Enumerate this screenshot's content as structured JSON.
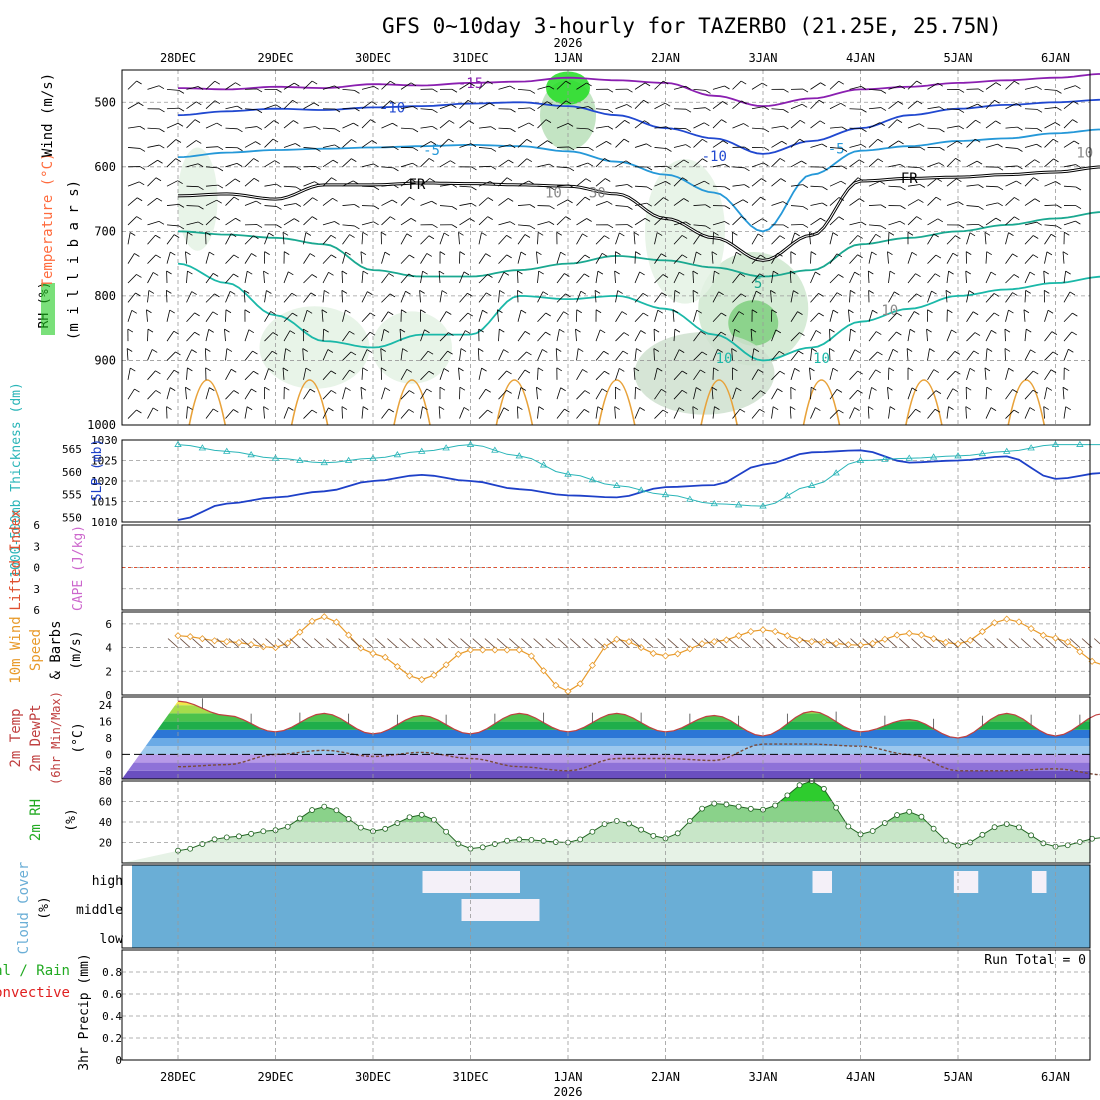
{
  "title": "GFS 0~10day 3-hourly for TAZERBO (21.25E, 25.75N)",
  "year_label": "2026",
  "run_total_label": "Run Total = 0",
  "date_labels": [
    "28DEC",
    "29DEC",
    "30DEC",
    "31DEC",
    "1JAN",
    "2JAN",
    "3JAN",
    "4JAN",
    "5JAN",
    "6JAN"
  ],
  "colors": {
    "rh": "#22cc22",
    "temperature": "#ff6b3d",
    "wind": "#1e40c8",
    "slp": "#1e40c8",
    "thickness": "#2ab5b8",
    "lifted_index": "#e05030",
    "cape": "#cc66cc",
    "wind10": "#e89a2a",
    "temp2m": "#c04040",
    "rh2m": "#22aa22",
    "cloud": "#6aaed6",
    "precip": "#22aa22",
    "convective": "#e02020"
  },
  "chart_data": [
    {
      "type": "contour",
      "panel": "upper-air cross-section",
      "ylabel_parts": [
        "RH (%)",
        "Temperature (°C)",
        "Wind (m/s)"
      ],
      "yunit_label": "(m i l l i b a r s)",
      "ylim": [
        1000,
        450
      ],
      "ticks": [
        500,
        600,
        700,
        800,
        900,
        1000
      ],
      "contour_labels": [
        "-15",
        "-10",
        "-5",
        "FR",
        "FR",
        "-10",
        "-5",
        "5",
        "10",
        "10",
        "10",
        "10",
        "30",
        "10"
      ],
      "series": [
        {
          "name": "-15",
          "color": "#8a1fb0",
          "x": [
            0,
            0.5,
            1,
            1.5,
            2,
            2.5,
            3,
            3.5,
            4,
            4.5,
            5,
            5.5,
            6,
            6.5,
            7,
            7.5,
            8,
            8.5,
            9,
            9.5,
            9.8
          ],
          "values": [
            478,
            480,
            476,
            478,
            472,
            474,
            470,
            468,
            462,
            466,
            470,
            490,
            506,
            494,
            480,
            476,
            470,
            466,
            462,
            456,
            452
          ]
        },
        {
          "name": "-10",
          "color": "#2048d0",
          "x": [
            0,
            0.5,
            1,
            1.5,
            2,
            2.5,
            3,
            3.5,
            4,
            4.5,
            5,
            5.5,
            6,
            6.5,
            7,
            7.5,
            8,
            8.5,
            9,
            9.5,
            9.8
          ],
          "values": [
            520,
            514,
            510,
            512,
            508,
            506,
            502,
            500,
            506,
            520,
            540,
            556,
            580,
            560,
            540,
            520,
            510,
            504,
            500,
            496,
            494
          ]
        },
        {
          "name": "-5",
          "color": "#2598d8",
          "x": [
            0,
            0.5,
            1,
            1.5,
            2,
            2.5,
            3,
            3.5,
            4,
            4.5,
            5,
            5.5,
            6,
            6.5,
            7,
            7.5,
            8,
            8.5,
            9,
            9.5,
            9.8
          ],
          "values": [
            585,
            578,
            574,
            572,
            570,
            568,
            566,
            568,
            576,
            592,
            612,
            640,
            700,
            612,
            575,
            568,
            560,
            556,
            548,
            542,
            540
          ]
        },
        {
          "name": "FR",
          "color": "#000000",
          "x": [
            0,
            0.5,
            1,
            1.5,
            2,
            2.5,
            3,
            3.5,
            4,
            4.5,
            5,
            5.5,
            6,
            6.5,
            7,
            7.5,
            8,
            8.5,
            9,
            9.5,
            9.8
          ],
          "values": [
            645,
            642,
            650,
            628,
            628,
            625,
            626,
            628,
            630,
            642,
            680,
            710,
            745,
            706,
            622,
            618,
            616,
            612,
            608,
            600,
            592
          ]
        },
        {
          "name": "5",
          "color": "#1aa890",
          "x": [
            0,
            0.5,
            1,
            1.5,
            2,
            2.5,
            3,
            3.5,
            4,
            4.5,
            5,
            5.5,
            6,
            6.5,
            7,
            7.5,
            8,
            8.5,
            9,
            9.5,
            9.8
          ],
          "values": [
            700,
            705,
            710,
            720,
            760,
            770,
            770,
            760,
            750,
            738,
            745,
            756,
            770,
            760,
            720,
            710,
            700,
            690,
            680,
            670,
            660
          ]
        },
        {
          "name": "10",
          "color": "#1ab8a8",
          "x": [
            0,
            0.5,
            1,
            1.5,
            2,
            2.5,
            3,
            3.5,
            4,
            4.5,
            5,
            5.5,
            6,
            6.5,
            7,
            7.5,
            8,
            8.5,
            9,
            9.5,
            9.8
          ],
          "values": [
            750,
            780,
            830,
            870,
            880,
            860,
            860,
            800,
            805,
            800,
            820,
            860,
            900,
            880,
            840,
            820,
            800,
            790,
            780,
            770,
            760
          ]
        }
      ]
    },
    {
      "type": "line",
      "panel": "thickness and sea-level pressure",
      "ylabel_left": "1000-500mb Thickness (dm)",
      "ylabel_right": "SLP (mb)",
      "left_ticks": [
        550,
        555,
        560,
        565
      ],
      "right_ticks": [
        1010,
        1015,
        1020,
        1025,
        1030
      ],
      "ylim_left": [
        549,
        567
      ],
      "ylim_right": [
        1010,
        1030
      ],
      "series": [
        {
          "name": "SLP",
          "axis": "right",
          "x": [
            0,
            0.5,
            1,
            1.5,
            2,
            2.5,
            3,
            3.5,
            4,
            4.5,
            5,
            5.5,
            6,
            6.5,
            7,
            7.5,
            8,
            8.5,
            9,
            9.5,
            9.8
          ],
          "values": [
            1010.5,
            1014.5,
            1016,
            1017.5,
            1020,
            1021.5,
            1020,
            1018,
            1016.5,
            1016,
            1018.5,
            1019,
            1024,
            1027,
            1027.5,
            1024.5,
            1025,
            1026,
            1020.5,
            1022,
            1024.5
          ]
        },
        {
          "name": "Thickness",
          "axis": "left",
          "x": [
            0,
            0.5,
            1,
            1.5,
            2,
            2.5,
            3,
            3.5,
            4,
            4.5,
            5,
            5.5,
            6,
            6.5,
            7,
            7.5,
            8,
            8.5,
            9,
            9.5,
            9.8
          ],
          "values": [
            566,
            564.5,
            563,
            562,
            563,
            564.5,
            566,
            563.5,
            559.5,
            557,
            555,
            553,
            552.5,
            557,
            562.5,
            563,
            563.5,
            564.5,
            566,
            566,
            566
          ]
        }
      ]
    },
    {
      "type": "line",
      "panel": "lifted index and CAPE",
      "ylabel_left": "Lifted Index",
      "ylabel_right": "CAPE (J/kg)",
      "ticks": [
        -6,
        -3,
        0,
        3,
        6
      ],
      "tick_labels": [
        "6",
        "3",
        "0",
        "3",
        "6"
      ],
      "ylim": [
        -6,
        6
      ],
      "series": []
    },
    {
      "type": "line",
      "panel": "10m wind",
      "ylabel_parts": [
        "10m Wind",
        "Speed",
        "& Barbs"
      ],
      "yunit_label": "(m/s)",
      "ticks": [
        0,
        2,
        4,
        6
      ],
      "ylim": [
        0,
        7
      ],
      "series": [
        {
          "name": "Speed",
          "x": [
            0,
            0.5,
            1,
            1.5,
            2,
            2.5,
            3,
            3.5,
            4,
            4.5,
            5,
            5.5,
            6,
            6.5,
            7,
            7.5,
            8,
            8.5,
            9,
            9.5,
            9.8
          ],
          "values": [
            5,
            4.5,
            4,
            6.6,
            3.5,
            1.3,
            3.8,
            3.8,
            0.3,
            4.7,
            3.3,
            4.5,
            5.5,
            4.5,
            4.2,
            5.2,
            4.3,
            6.4,
            4.8,
            2.5,
            1.6
          ]
        }
      ]
    },
    {
      "type": "area",
      "panel": "2m temperature and dewpoint",
      "ylabel_parts": [
        "2m Temp",
        "2m DewPt",
        "(6hr Min/Max)"
      ],
      "yunit_label": "(°C)",
      "ticks": [
        -8,
        0,
        8,
        16,
        24
      ],
      "tick_labels": [
        "−8",
        "0",
        "8",
        "16",
        "24"
      ],
      "ylim": [
        -12,
        28
      ],
      "series": [
        {
          "name": "2m Temp",
          "x": [
            0,
            0.5,
            1,
            1.5,
            2,
            2.5,
            3,
            3.5,
            4,
            4.5,
            5,
            5.5,
            6,
            6.5,
            7,
            7.5,
            8,
            8.5,
            9,
            9.5,
            9.8
          ],
          "values": [
            26,
            19,
            11,
            20,
            10,
            19,
            10,
            20,
            11,
            20,
            11,
            19,
            9,
            21,
            11,
            17,
            8,
            20,
            9,
            20,
            9
          ]
        },
        {
          "name": "2m DewPt",
          "x": [
            0,
            0.5,
            1,
            1.5,
            2,
            2.5,
            3,
            3.5,
            4,
            4.5,
            5,
            5.5,
            6,
            6.5,
            7,
            7.5,
            8,
            8.5,
            9,
            9.5,
            9.8
          ],
          "values": [
            -6,
            -5,
            0,
            2,
            -1,
            1,
            -2,
            -6,
            -8,
            -2,
            -2,
            -3,
            5,
            5,
            4,
            0,
            -8,
            -8,
            -7,
            -10,
            -12
          ]
        }
      ]
    },
    {
      "type": "area",
      "panel": "2m relative humidity",
      "ylabel": "2m RH",
      "yunit_label": "(%)",
      "ticks": [
        20,
        40,
        60,
        80
      ],
      "ylim": [
        0,
        80
      ],
      "series": [
        {
          "name": "2m RH",
          "x": [
            0,
            0.5,
            1,
            1.5,
            2,
            2.5,
            3,
            3.5,
            4,
            4.5,
            5,
            5.5,
            6,
            6.5,
            7,
            7.5,
            8,
            8.5,
            9,
            9.5,
            9.8
          ],
          "values": [
            12,
            25,
            32,
            55,
            31,
            47,
            14,
            23,
            20,
            41,
            24,
            58,
            52,
            80,
            28,
            50,
            17,
            38,
            16,
            25,
            30
          ]
        }
      ]
    },
    {
      "type": "heatmap",
      "panel": "cloud cover",
      "ylabel": "Cloud Cover",
      "yunit_label": "(%)",
      "levels": [
        "high",
        "middle",
        "low"
      ],
      "blocks": [
        {
          "level": "high",
          "x0": 3.0,
          "x1": 4.0,
          "cover": 90
        },
        {
          "level": "middle",
          "x0": 3.4,
          "x1": 4.2,
          "cover": 80
        },
        {
          "level": "high",
          "x0": 7.0,
          "x1": 7.2,
          "cover": 70
        },
        {
          "level": "high",
          "x0": 8.45,
          "x1": 8.7,
          "cover": 70
        },
        {
          "level": "high",
          "x0": 9.25,
          "x1": 9.4,
          "cover": 60
        }
      ]
    },
    {
      "type": "bar",
      "panel": "3hr precipitation",
      "ylabel_parts": [
        "Total / Rain",
        "Convective"
      ],
      "yunit_label": "3hr Precip (mm)",
      "ticks": [
        0,
        0.2,
        0.4,
        0.6,
        0.8
      ],
      "ylim": [
        0,
        1.0
      ],
      "values": []
    }
  ]
}
